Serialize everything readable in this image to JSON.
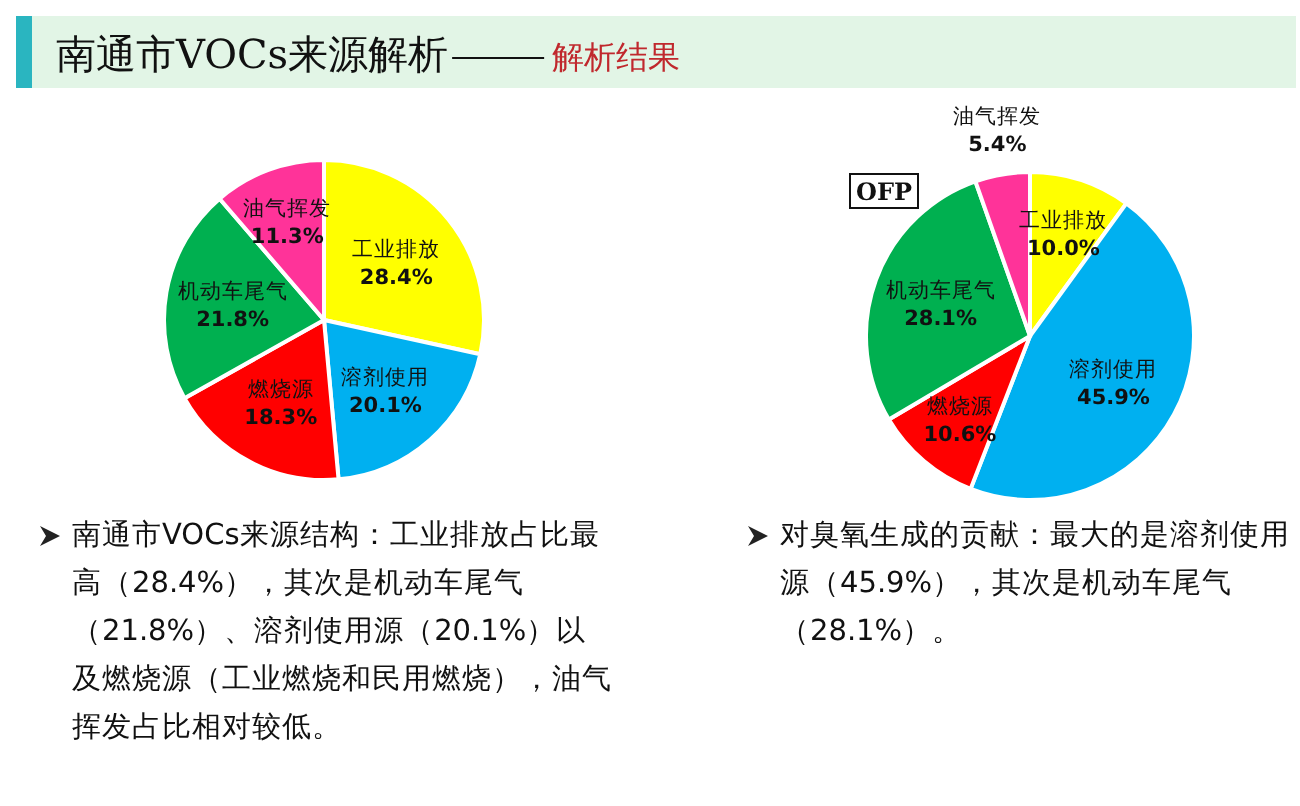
{
  "chart_data": [
    {
      "type": "pie",
      "title": "南通市VOCs来源解析",
      "subtitle": "解析结果",
      "categories": [
        "工业排放",
        "溶剂使用",
        "燃烧源",
        "机动车尾气",
        "油气挥发"
      ],
      "values": [
        28.4,
        20.1,
        18.3,
        21.8,
        11.3
      ],
      "colors": [
        "#ffff00",
        "#00b0f0",
        "#ff0000",
        "#00b050",
        "#ff3399"
      ],
      "value_labels": [
        "28.4%",
        "20.1%",
        "18.3%",
        "21.8%",
        "11.3%"
      ],
      "annotations": [
        "南通市VOCs来源结构：工业排放占比最高（28.4%），其次是机动车尾气（21.8%）、溶剂使用源（20.1%）以及燃烧源（工业燃烧和民用燃烧），油气挥发占比相对较低。"
      ]
    },
    {
      "type": "pie",
      "title": "OFP",
      "categories": [
        "工业排放",
        "溶剂使用",
        "燃烧源",
        "机动车尾气",
        "油气挥发"
      ],
      "values": [
        10.0,
        45.9,
        10.6,
        28.1,
        5.4
      ],
      "colors": [
        "#ffff00",
        "#00b0f0",
        "#ff0000",
        "#00b050",
        "#ff3399"
      ],
      "value_labels": [
        "10.0%",
        "45.9%",
        "10.6%",
        "28.1%",
        "5.4%"
      ],
      "annotations": [
        "对臭氧生成的贡献：最大的是溶剂使用源（45.9%），其次是机动车尾气（28.1%）。"
      ]
    }
  ]
}
